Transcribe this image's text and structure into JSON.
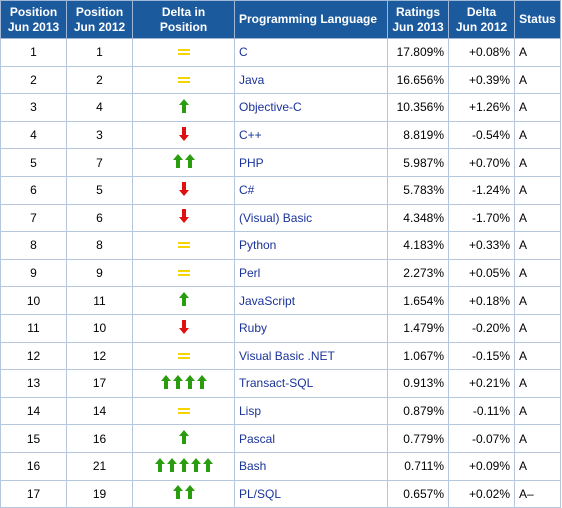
{
  "headers": {
    "pos2013": "Position Jun 2013",
    "pos2013_l1": "Position",
    "pos2013_l2": "Jun 2013",
    "pos2012_l1": "Position",
    "pos2012_l2": "Jun 2012",
    "delta_pos": "Delta in Position",
    "language": "Programming Language",
    "ratings_l1": "Ratings",
    "ratings_l2": "Jun 2013",
    "delta_l1": "Delta",
    "delta_l2": "Jun 2012",
    "status": "Status"
  },
  "colors": {
    "header_bg": "#1c5a9e",
    "up_arrow": "#2a9d0e",
    "down_arrow": "#e01010",
    "equal": "#f5d400",
    "link": "#1a3399"
  },
  "rows": [
    {
      "pos2013": "1",
      "pos2012": "1",
      "change": "equal",
      "count": 1,
      "language": "C",
      "rating": "17.809%",
      "delta": "+0.08%",
      "status": "A"
    },
    {
      "pos2013": "2",
      "pos2012": "2",
      "change": "equal",
      "count": 1,
      "language": "Java",
      "rating": "16.656%",
      "delta": "+0.39%",
      "status": "A"
    },
    {
      "pos2013": "3",
      "pos2012": "4",
      "change": "up",
      "count": 1,
      "language": "Objective-C",
      "rating": "10.356%",
      "delta": "+1.26%",
      "status": "A"
    },
    {
      "pos2013": "4",
      "pos2012": "3",
      "change": "down",
      "count": 1,
      "language": "C++",
      "rating": "8.819%",
      "delta": "-0.54%",
      "status": "A"
    },
    {
      "pos2013": "5",
      "pos2012": "7",
      "change": "up",
      "count": 2,
      "language": "PHP",
      "rating": "5.987%",
      "delta": "+0.70%",
      "status": "A"
    },
    {
      "pos2013": "6",
      "pos2012": "5",
      "change": "down",
      "count": 1,
      "language": "C#",
      "rating": "5.783%",
      "delta": "-1.24%",
      "status": "A"
    },
    {
      "pos2013": "7",
      "pos2012": "6",
      "change": "down",
      "count": 1,
      "language": "(Visual) Basic",
      "rating": "4.348%",
      "delta": "-1.70%",
      "status": "A"
    },
    {
      "pos2013": "8",
      "pos2012": "8",
      "change": "equal",
      "count": 1,
      "language": "Python",
      "rating": "4.183%",
      "delta": "+0.33%",
      "status": "A"
    },
    {
      "pos2013": "9",
      "pos2012": "9",
      "change": "equal",
      "count": 1,
      "language": "Perl",
      "rating": "2.273%",
      "delta": "+0.05%",
      "status": "A"
    },
    {
      "pos2013": "10",
      "pos2012": "11",
      "change": "up",
      "count": 1,
      "language": "JavaScript",
      "rating": "1.654%",
      "delta": "+0.18%",
      "status": "A"
    },
    {
      "pos2013": "11",
      "pos2012": "10",
      "change": "down",
      "count": 1,
      "language": "Ruby",
      "rating": "1.479%",
      "delta": "-0.20%",
      "status": "A"
    },
    {
      "pos2013": "12",
      "pos2012": "12",
      "change": "equal",
      "count": 1,
      "language": "Visual Basic .NET",
      "rating": "1.067%",
      "delta": "-0.15%",
      "status": "A"
    },
    {
      "pos2013": "13",
      "pos2012": "17",
      "change": "up",
      "count": 4,
      "language": "Transact-SQL",
      "rating": "0.913%",
      "delta": "+0.21%",
      "status": "A"
    },
    {
      "pos2013": "14",
      "pos2012": "14",
      "change": "equal",
      "count": 1,
      "language": "Lisp",
      "rating": "0.879%",
      "delta": "-0.11%",
      "status": "A"
    },
    {
      "pos2013": "15",
      "pos2012": "16",
      "change": "up",
      "count": 1,
      "language": "Pascal",
      "rating": "0.779%",
      "delta": "-0.07%",
      "status": "A"
    },
    {
      "pos2013": "16",
      "pos2012": "21",
      "change": "up",
      "count": 5,
      "language": "Bash",
      "rating": "0.711%",
      "delta": "+0.09%",
      "status": "A"
    },
    {
      "pos2013": "17",
      "pos2012": "19",
      "change": "up",
      "count": 2,
      "language": "PL/SQL",
      "rating": "0.657%",
      "delta": "+0.02%",
      "status": "A–"
    }
  ]
}
